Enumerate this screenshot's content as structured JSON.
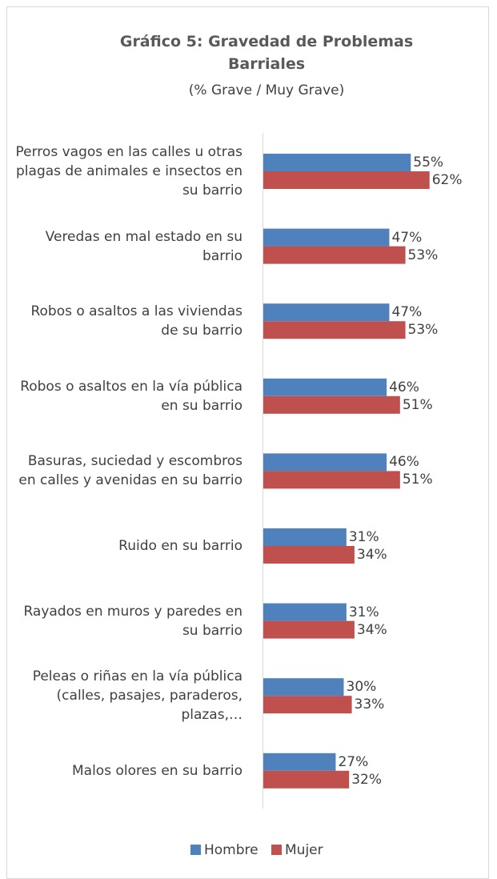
{
  "chart_data": {
    "type": "bar",
    "orientation": "horizontal",
    "title": "Gráfico 5: Gravedad de Problemas Barriales",
    "subtitle": "(% Grave / Muy Grave)",
    "categories": [
      "Perros vagos en las calles u otras plagas de animales e insectos en su barrio",
      "Veredas en mal estado en su barrio",
      "Robos o asaltos a las viviendas de su barrio",
      "Robos o asaltos en la vía pública en su barrio",
      "Basuras, suciedad y escombros en calles y avenidas en su barrio",
      "Ruido en su barrio",
      "Rayados en muros y paredes en su barrio",
      "Peleas o riñas en la vía pública (calles, pasajes, paraderos, plazas,…",
      "Malos olores en su barrio"
    ],
    "series": [
      {
        "name": "Hombre",
        "color": "#4f81bd",
        "values": [
          55,
          47,
          47,
          46,
          46,
          31,
          31,
          30,
          27
        ],
        "value_labels": [
          "55%",
          "47%",
          "47%",
          "46%",
          "46%",
          "31%",
          "31%",
          "30%",
          "27%"
        ]
      },
      {
        "name": "Mujer",
        "color": "#c0504d",
        "values": [
          62,
          53,
          53,
          51,
          51,
          34,
          34,
          33,
          32
        ],
        "value_labels": [
          "62%",
          "53%",
          "53%",
          "51%",
          "51%",
          "34%",
          "34%",
          "33%",
          "32%"
        ]
      }
    ],
    "legend": "bottom"
  }
}
